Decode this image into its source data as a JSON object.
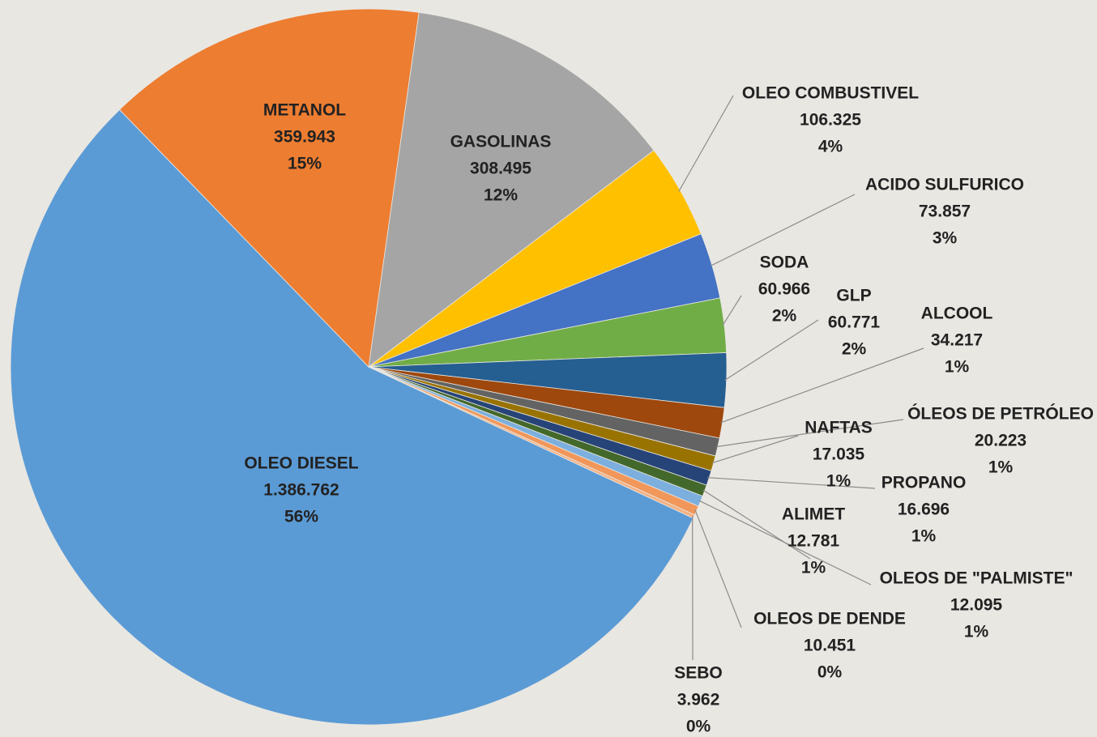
{
  "chart_data": {
    "type": "pie",
    "categories": [
      "OLEO DIESEL",
      "METANOL",
      "GASOLINAS",
      "OLEO COMBUSTIVEL",
      "ACIDO SULFURICO",
      "SODA",
      "GLP",
      "ALCOOL",
      "ÓLEOS DE PETRÓLEO",
      "NAFTAS",
      "PROPANO",
      "ALIMET",
      "OLEOS DE \"PALMISTE\"",
      "OLEOS DE DENDE",
      "SEBO"
    ],
    "values": [
      1386762,
      359943,
      308495,
      106325,
      73857,
      60966,
      60771,
      34217,
      20223,
      17035,
      16696,
      12781,
      12095,
      10451,
      3962
    ],
    "value_labels": [
      "1.386.762",
      "359.943",
      "308.495",
      "106.325",
      "73.857",
      "60.966",
      "60.771",
      "34.217",
      "20.223",
      "17.035",
      "16.696",
      "12.781",
      "12.095",
      "10.451",
      "3.962"
    ],
    "percent_labels": [
      "56%",
      "15%",
      "12%",
      "4%",
      "3%",
      "2%",
      "2%",
      "1%",
      "1%",
      "1%",
      "1%",
      "1%",
      "1%",
      "0%",
      "0%"
    ],
    "colors": [
      "#5b9bd5",
      "#ed7d31",
      "#a5a5a5",
      "#ffc000",
      "#4472c4",
      "#70ad47",
      "#255e91",
      "#9e480e",
      "#636363",
      "#997300",
      "#264478",
      "#43682b",
      "#7cafdd",
      "#f1975a",
      "#f4b183"
    ]
  }
}
